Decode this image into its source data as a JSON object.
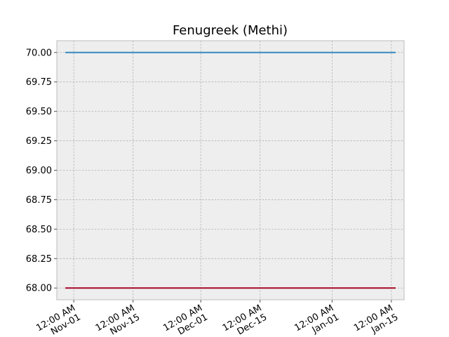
{
  "chart_data": {
    "type": "line",
    "title": "Fenugreek (Methi)",
    "xlabel": "",
    "ylabel": "",
    "x": [
      "2023-10-30",
      "2024-01-16"
    ],
    "x_ticks": [
      {
        "date": "2023-11-01",
        "line1": "12:00 AM",
        "line2": "Nov-01"
      },
      {
        "date": "2023-11-15",
        "line1": "12:00 AM",
        "line2": "Nov-15"
      },
      {
        "date": "2023-12-01",
        "line1": "12:00 AM",
        "line2": "Dec-01"
      },
      {
        "date": "2023-12-15",
        "line1": "12:00 AM",
        "line2": "Dec-15"
      },
      {
        "date": "2024-01-01",
        "line1": "12:00 AM",
        "line2": "Jan-01"
      },
      {
        "date": "2024-01-15",
        "line1": "12:00 AM",
        "line2": "Jan-15"
      }
    ],
    "y_ticks": [
      "68.00",
      "68.25",
      "68.50",
      "68.75",
      "69.00",
      "69.25",
      "69.50",
      "69.75",
      "70.00"
    ],
    "ylim": [
      67.9,
      70.1
    ],
    "xlim": [
      "2023-10-28",
      "2024-01-18"
    ],
    "grid": true,
    "series": [
      {
        "values": [
          70.0,
          70.0
        ],
        "color": "#348ABD"
      },
      {
        "values": [
          68.0,
          68.0
        ],
        "color": "#A60628"
      }
    ]
  }
}
